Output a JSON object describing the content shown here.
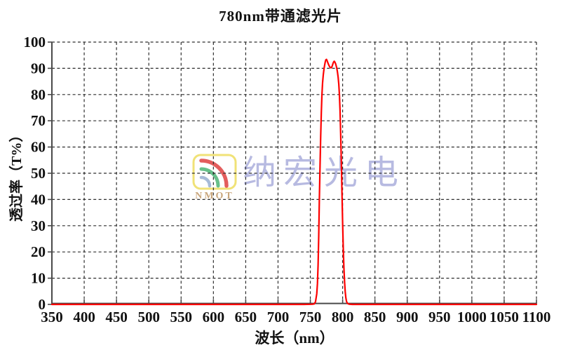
{
  "header": {
    "title": "780nm带通滤光片"
  },
  "watermark": {
    "logo_text": "NMOT",
    "brand": "纳宏光电",
    "colors": {
      "box_border": "#f0e170",
      "arc_outer": "#e25555",
      "arc_middle": "#5fbd84",
      "arc_inner": "#a3b8d6",
      "nmot_text": "#c7a276",
      "brand_text": "#b4b7e0"
    }
  },
  "chart_data": {
    "type": "line",
    "title": "780nm带通滤光片",
    "xlabel": "波长（nm）",
    "ylabel": "透过率（T%）",
    "xlim": [
      350,
      1100
    ],
    "ylim": [
      0,
      100
    ],
    "x_ticks": [
      350,
      400,
      450,
      500,
      550,
      600,
      650,
      700,
      750,
      800,
      850,
      900,
      950,
      1000,
      1050,
      1100
    ],
    "y_ticks": [
      0,
      10,
      20,
      30,
      40,
      50,
      60,
      70,
      80,
      90,
      100
    ],
    "grid": "dashed",
    "legend": "none",
    "series": [
      {
        "name": "transmission",
        "color": "#fe0000",
        "peak_wavelength_nm": 775,
        "peak_transmission_pct": 93.4,
        "points": [
          [
            350,
            0
          ],
          [
            500,
            0
          ],
          [
            650,
            0
          ],
          [
            720,
            0
          ],
          [
            740,
            0
          ],
          [
            750,
            0.05
          ],
          [
            754,
            0.1
          ],
          [
            756,
            0.2
          ],
          [
            758,
            1
          ],
          [
            760,
            4
          ],
          [
            761,
            8
          ],
          [
            762,
            15
          ],
          [
            763,
            26
          ],
          [
            764,
            40
          ],
          [
            765,
            53
          ],
          [
            766,
            64
          ],
          [
            767,
            73
          ],
          [
            768,
            80
          ],
          [
            769,
            84.5
          ],
          [
            770,
            87.5
          ],
          [
            771,
            89.5
          ],
          [
            772,
            91
          ],
          [
            773,
            92.3
          ],
          [
            774,
            93.2
          ],
          [
            775,
            93.4
          ],
          [
            776,
            92.9
          ],
          [
            777,
            92.2
          ],
          [
            778,
            91.6
          ],
          [
            779,
            91.0
          ],
          [
            780,
            90.6
          ],
          [
            781,
            90.3
          ],
          [
            782,
            90.2
          ],
          [
            783,
            90.4
          ],
          [
            784,
            91.0
          ],
          [
            785,
            91.8
          ],
          [
            786,
            92.4
          ],
          [
            787,
            92.7
          ],
          [
            788,
            92.4
          ],
          [
            789,
            91.8
          ],
          [
            790,
            91.0
          ],
          [
            791,
            90.0
          ],
          [
            792,
            88.6
          ],
          [
            793,
            86.6
          ],
          [
            794,
            84
          ],
          [
            795,
            80
          ],
          [
            796,
            74
          ],
          [
            797,
            65
          ],
          [
            798,
            54
          ],
          [
            799,
            42
          ],
          [
            800,
            31
          ],
          [
            801,
            21.5
          ],
          [
            802,
            14
          ],
          [
            803,
            8.5
          ],
          [
            804,
            4.8
          ],
          [
            805,
            2.5
          ],
          [
            806,
            1.2
          ],
          [
            807,
            0.6
          ],
          [
            808,
            0.3
          ],
          [
            810,
            0.1
          ],
          [
            815,
            0
          ],
          [
            850,
            0
          ],
          [
            950,
            0
          ],
          [
            1100,
            0
          ]
        ]
      }
    ]
  }
}
